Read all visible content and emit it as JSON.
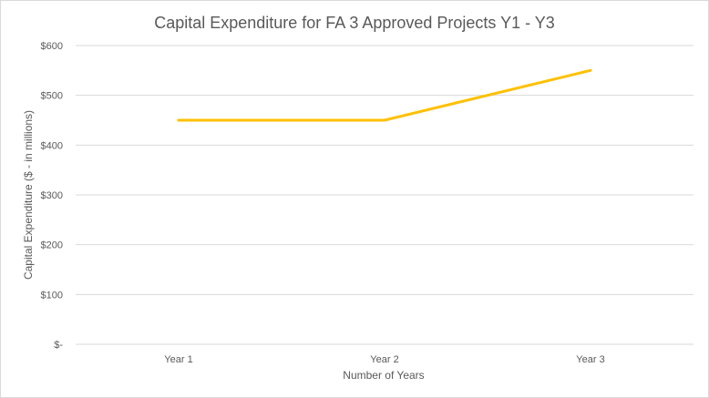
{
  "chart_data": {
    "type": "line",
    "title": "Capital Expenditure for FA 3 Approved Projects Y1 - Y3",
    "xlabel": "Number of Years",
    "ylabel": "Capital Expenditure ($ - in millions)",
    "categories": [
      "Year 1",
      "Year 2",
      "Year 3"
    ],
    "series": [
      {
        "values": [
          450,
          450,
          550
        ]
      }
    ],
    "ylim": [
      0,
      600
    ],
    "yticks": [
      0,
      100,
      200,
      300,
      400,
      500,
      600
    ],
    "ytick_labels": [
      "$-",
      "$100",
      "$200",
      "$300",
      "$400",
      "$500",
      "$600"
    ],
    "grid": true,
    "legend": "none",
    "colors": {
      "series": "#FFC000",
      "grid": "#D9D9D9",
      "text": "#595959"
    }
  }
}
